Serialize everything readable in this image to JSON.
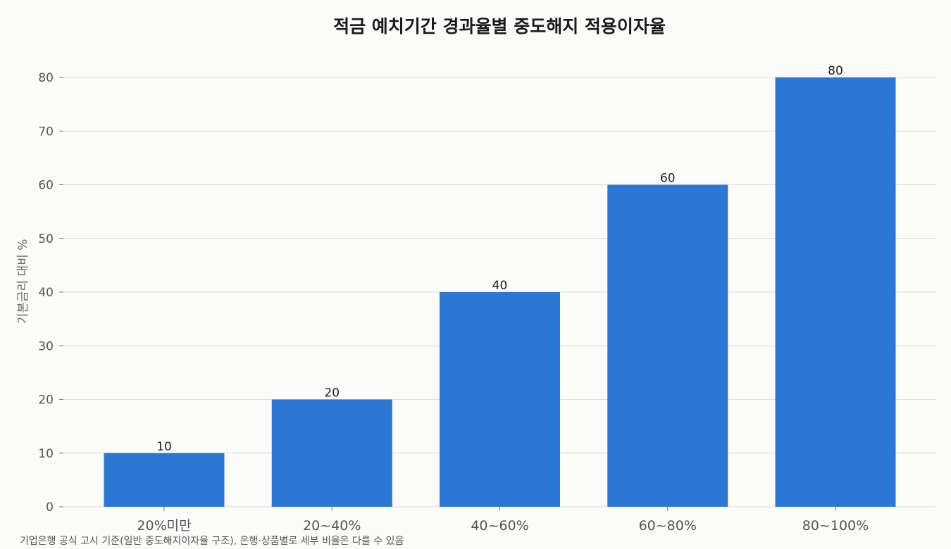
{
  "chart_data": {
    "type": "bar",
    "title": "적금 예치기간 경과율별 중도해지 적용이자율",
    "xlabel": "",
    "ylabel": "기본금리 대비 %",
    "categories": [
      "20%미만",
      "20~40%",
      "40~60%",
      "60~80%",
      "80~100%"
    ],
    "values": [
      10,
      20,
      40,
      60,
      80
    ],
    "data_labels": [
      "10",
      "20",
      "40",
      "60",
      "80"
    ],
    "ylim": [
      0,
      80
    ],
    "yticks": [
      0,
      10,
      20,
      30,
      40,
      50,
      60,
      70,
      80
    ],
    "grid": true,
    "legend": "none",
    "bar_color": "#2b78d4",
    "footnote": "기업은행 공식 고시 기준(일반 중도해지이자율 구조), 은행·상품별로 세부 비율은 다를 수 있음"
  }
}
